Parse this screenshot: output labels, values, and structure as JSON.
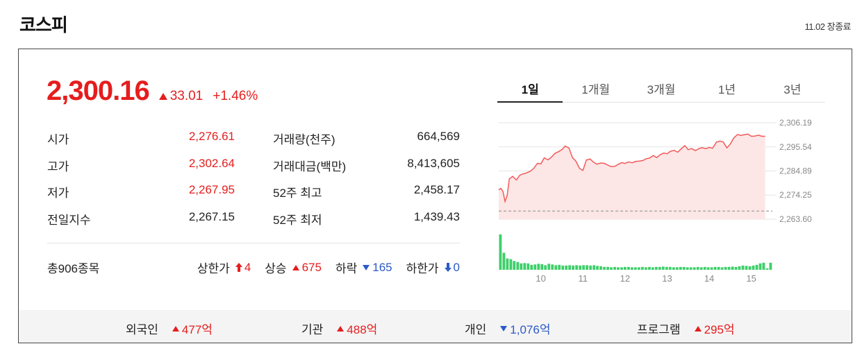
{
  "header": {
    "title": "코스피",
    "status": "11.02 장종료"
  },
  "quote": {
    "price": "2,300.16",
    "change": "33.01",
    "change_pct": "+1.46%"
  },
  "stats": [
    {
      "k1": "시가",
      "v1": "2,276.61",
      "k2": "거래량(천주)",
      "v2": "664,569"
    },
    {
      "k1": "고가",
      "v1": "2,302.64",
      "k2": "거래대금(백만)",
      "v2": "8,413,605"
    },
    {
      "k1": "저가",
      "v1": "2,267.95",
      "k2": "52주 최고",
      "v2": "2,458.17"
    },
    {
      "k1": "전일지수",
      "v1": "2,267.15",
      "k2": "52주 최저",
      "v2": "1,439.43"
    }
  ],
  "breadth": {
    "total": "총906종목",
    "upper_limit_label": "상한가",
    "upper_limit": "4",
    "rise_label": "상승",
    "rise": "675",
    "fall_label": "하락",
    "fall": "165",
    "lower_limit_label": "하한가",
    "lower_limit": "0"
  },
  "tabs": [
    "1일",
    "1개월",
    "3개월",
    "1년",
    "3년"
  ],
  "active_tab": "1일",
  "investors": [
    {
      "label": "외국인",
      "value": "477억",
      "dir": "up"
    },
    {
      "label": "기관",
      "value": "488억",
      "dir": "up"
    },
    {
      "label": "개인",
      "value": "1,076억",
      "dir": "down"
    },
    {
      "label": "프로그램",
      "value": "295억",
      "dir": "up"
    }
  ],
  "colors": {
    "up": "#e51d1d",
    "down": "#2b5bc8",
    "line": "#f25a5a",
    "fill": "#fde6e6",
    "volume": "#3ecf6a"
  },
  "chart_data": {
    "type": "line",
    "y_ticks": [
      "2,306.19",
      "2,295.54",
      "2,284.89",
      "2,274.25",
      "2,263.60"
    ],
    "ylim": [
      2263.6,
      2306.19
    ],
    "x_ticks": [
      "10",
      "11",
      "12",
      "13",
      "14",
      "15"
    ],
    "xlim": [
      9.0,
      15.5
    ],
    "baseline": 2267.15,
    "series": [
      {
        "x": [
          9.0,
          9.05,
          9.1,
          9.15,
          9.2,
          9.25,
          9.33,
          9.42,
          9.5,
          9.58,
          9.67,
          9.75,
          9.83,
          9.92,
          10.0,
          10.08,
          10.17,
          10.25,
          10.33,
          10.42,
          10.5,
          10.58,
          10.67,
          10.75,
          10.83,
          10.92,
          11.0,
          11.08,
          11.17,
          11.25,
          11.33,
          11.42,
          11.5,
          11.58,
          11.67,
          11.75,
          11.83,
          11.92,
          12.0,
          12.08,
          12.17,
          12.25,
          12.33,
          12.42,
          12.5,
          12.58,
          12.67,
          12.75,
          12.83,
          12.92,
          13.0,
          13.08,
          13.17,
          13.25,
          13.33,
          13.42,
          13.5,
          13.58,
          13.67,
          13.75,
          13.83,
          13.92,
          14.0,
          14.08,
          14.17,
          14.25,
          14.33,
          14.42,
          14.5,
          14.58,
          14.67,
          14.75,
          14.83,
          14.92,
          15.0,
          15.08,
          15.17,
          15.25,
          15.33
        ],
        "y": [
          2276.6,
          2277.2,
          2275.8,
          2271.4,
          2274.0,
          2281.3,
          2282.5,
          2280.9,
          2283.0,
          2283.6,
          2284.1,
          2284.8,
          2286.0,
          2288.3,
          2288.0,
          2290.7,
          2289.8,
          2291.0,
          2292.6,
          2293.4,
          2294.3,
          2295.9,
          2295.0,
          2290.8,
          2289.3,
          2286.0,
          2285.1,
          2289.7,
          2290.2,
          2288.8,
          2287.9,
          2288.4,
          2288.3,
          2287.6,
          2286.8,
          2286.9,
          2287.7,
          2288.6,
          2288.2,
          2288.9,
          2288.5,
          2289.1,
          2289.2,
          2289.5,
          2290.3,
          2290.6,
          2291.7,
          2290.8,
          2292.0,
          2292.8,
          2292.5,
          2293.6,
          2294.0,
          2293.2,
          2294.6,
          2296.1,
          2294.3,
          2294.8,
          2293.9,
          2294.7,
          2295.2,
          2294.7,
          2295.3,
          2294.9,
          2297.6,
          2298.1,
          2297.7,
          2295.1,
          2296.8,
          2299.4,
          2301.0,
          2300.6,
          2300.9,
          2301.2,
          2300.2,
          2300.3,
          2300.7,
          2300.2,
          2300.2
        ]
      }
    ],
    "volume": [
      100,
      48,
      32,
      30,
      25,
      22,
      18,
      19,
      18,
      14,
      15,
      17,
      16,
      13,
      17,
      15,
      13,
      14,
      12,
      12,
      13,
      12,
      13,
      12,
      13,
      13,
      12,
      13,
      11,
      10,
      8,
      8,
      7,
      8,
      7,
      7,
      8,
      8,
      7,
      7,
      7,
      8,
      7,
      8,
      7,
      8,
      8,
      9,
      8,
      8,
      7,
      7,
      8,
      8,
      7,
      7,
      7,
      8,
      7,
      8,
      7,
      7,
      8,
      8,
      7,
      8,
      8,
      9,
      8,
      10,
      12,
      11,
      10,
      12,
      14,
      18,
      20,
      4,
      20
    ],
    "grid": true
  }
}
